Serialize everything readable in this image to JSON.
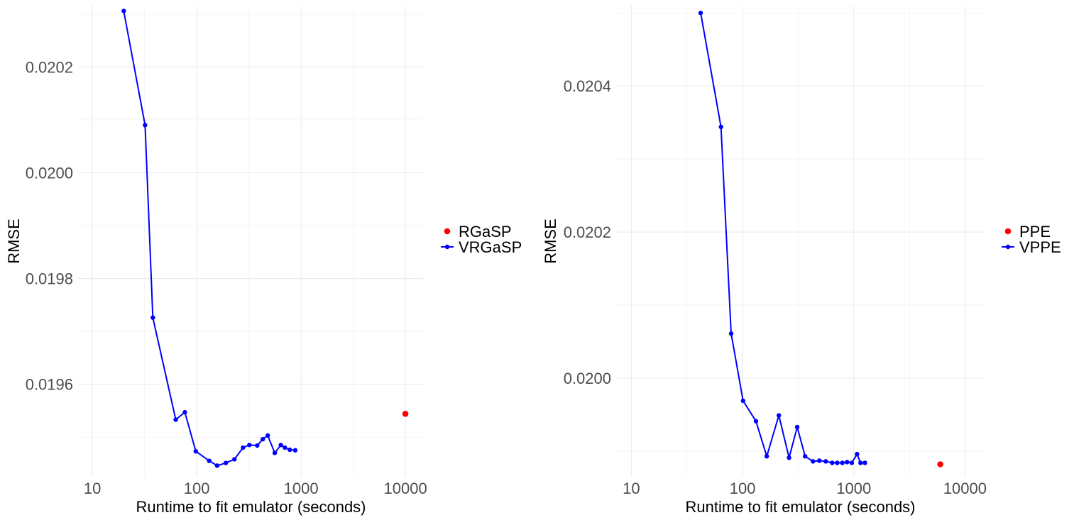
{
  "chart_data": [
    {
      "type": "line",
      "xlabel": "Runtime to fit emulator (seconds)",
      "ylabel": "RMSE",
      "x_scale": "log10",
      "xlim": [
        7.3,
        15000
      ],
      "ylim": [
        0.019425,
        0.020316
      ],
      "x_ticks": [
        10,
        100,
        1000,
        10000
      ],
      "x_tick_labels": [
        "10",
        "100",
        "1000",
        "10000"
      ],
      "y_ticks": [
        0.0196,
        0.0198,
        0.02,
        0.0202
      ],
      "y_tick_labels": [
        "0.0196",
        "0.0198",
        "0.0200",
        "0.0202"
      ],
      "grid": true,
      "legend_position": "right",
      "series": [
        {
          "name": "RGaSP",
          "color": "#ff0000",
          "mode": "points",
          "x": [
            10000
          ],
          "y": [
            0.019544
          ]
        },
        {
          "name": "VRGaSP",
          "color": "#0000ff",
          "mode": "lines+points",
          "x": [
            20,
            32,
            38,
            63,
            77,
            98,
            132,
            157,
            190,
            230,
            278,
            320,
            380,
            430,
            480,
            560,
            640,
            700,
            780,
            880
          ],
          "y": [
            0.020306,
            0.02009,
            0.019726,
            0.019533,
            0.019547,
            0.019473,
            0.019455,
            0.019446,
            0.019451,
            0.019458,
            0.01948,
            0.019485,
            0.019484,
            0.019496,
            0.019503,
            0.01947,
            0.019485,
            0.01948,
            0.019476,
            0.019475
          ]
        }
      ]
    },
    {
      "type": "line",
      "xlabel": "Runtime to fit emulator (seconds)",
      "ylabel": "RMSE",
      "x_scale": "log10",
      "xlim": [
        7.3,
        15000
      ],
      "ylim": [
        0.019865,
        0.02051
      ],
      "x_ticks": [
        10,
        100,
        1000,
        10000
      ],
      "x_tick_labels": [
        "10",
        "100",
        "1000",
        "10000"
      ],
      "y_ticks": [
        0.02,
        0.0202,
        0.0204
      ],
      "y_tick_labels": [
        "0.0200",
        "0.0202",
        "0.0204"
      ],
      "grid": true,
      "legend_position": "right",
      "series": [
        {
          "name": "PPE",
          "color": "#ff0000",
          "mode": "points",
          "x": [
            6000
          ],
          "y": [
            0.019882
          ]
        },
        {
          "name": "VPPE",
          "color": "#0000ff",
          "mode": "lines+points",
          "x": [
            42,
            64,
            79,
            101,
            132,
            165,
            212,
            262,
            310,
            365,
            430,
            490,
            560,
            640,
            710,
            790,
            870,
            960,
            1070,
            1150,
            1260
          ],
          "y": [
            0.0205,
            0.020344,
            0.020061,
            0.019969,
            0.019941,
            0.019893,
            0.019949,
            0.019891,
            0.019933,
            0.019893,
            0.019886,
            0.019887,
            0.019886,
            0.019884,
            0.019884,
            0.019884,
            0.019885,
            0.019884,
            0.019896,
            0.019884,
            0.019884
          ]
        }
      ]
    }
  ]
}
